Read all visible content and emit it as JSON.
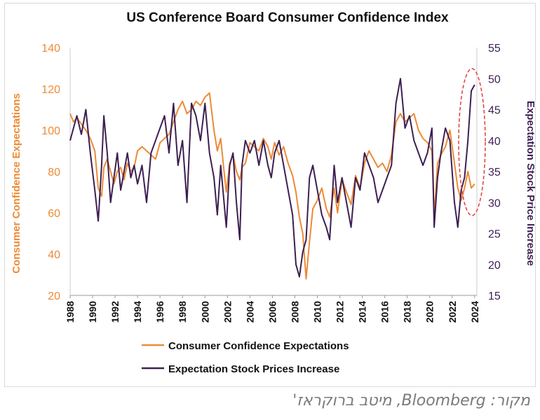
{
  "chart_data": {
    "type": "line",
    "title": "US Conference Board Consumer Confidence Index",
    "xlabel": "",
    "ylabel_left": "Consumer Confidence Expectations",
    "ylabel_right": "Expectation Stock Price Increase",
    "xlim": [
      1988,
      2024.2
    ],
    "ylim_left": [
      20,
      140
    ],
    "ylim_right": [
      15,
      55
    ],
    "left_ticks": [
      "20",
      "40",
      "60",
      "80",
      "100",
      "120",
      "140"
    ],
    "right_ticks": [
      "15",
      "20",
      "25",
      "30",
      "35",
      "40",
      "45",
      "50",
      "55"
    ],
    "x_ticks": [
      "1988",
      "1990",
      "1992",
      "1994",
      "1996",
      "1998",
      "2000",
      "2002",
      "2004",
      "2006",
      "2008",
      "2010",
      "2012",
      "2014",
      "2016",
      "2018",
      "2020",
      "2022",
      "2024"
    ],
    "legend_position": "bottom",
    "annotation": "dashed red ellipse highlighting 2023-2024 surge",
    "series": [
      {
        "name": "Consumer Confidence Expectations",
        "axis": "left",
        "color": "#ed8a35",
        "x": [
          1988.0,
          1988.3,
          1988.6,
          1989.0,
          1989.4,
          1989.8,
          1990.2,
          1990.5,
          1990.8,
          1991.0,
          1991.3,
          1991.6,
          1991.9,
          1992.2,
          1992.5,
          1992.8,
          1993.1,
          1993.4,
          1993.7,
          1994.0,
          1994.4,
          1994.8,
          1995.2,
          1995.6,
          1996.0,
          1996.4,
          1996.8,
          1997.2,
          1997.6,
          1998.0,
          1998.4,
          1998.8,
          1999.2,
          1999.6,
          2000.0,
          2000.4,
          2000.8,
          2001.1,
          2001.4,
          2001.7,
          2001.9,
          2002.2,
          2002.5,
          2002.8,
          2003.1,
          2003.3,
          2003.6,
          2004.0,
          2004.4,
          2004.8,
          2005.2,
          2005.6,
          2005.9,
          2006.2,
          2006.6,
          2007.0,
          2007.4,
          2007.8,
          2008.1,
          2008.4,
          2008.7,
          2009.0,
          2009.3,
          2009.6,
          2010.0,
          2010.4,
          2010.8,
          2011.1,
          2011.5,
          2011.8,
          2012.2,
          2012.6,
          2013.0,
          2013.4,
          2013.8,
          2014.2,
          2014.6,
          2015.0,
          2015.4,
          2015.8,
          2016.2,
          2016.6,
          2017.0,
          2017.4,
          2017.8,
          2018.2,
          2018.6,
          2019.0,
          2019.4,
          2019.8,
          2020.2,
          2020.4,
          2020.7,
          2021.0,
          2021.4,
          2021.8,
          2022.2,
          2022.5,
          2022.8,
          2023.1,
          2023.4,
          2023.7,
          2024.0
        ],
        "y": [
          108,
          104,
          106,
          103,
          100,
          96,
          90,
          72,
          68,
          82,
          86,
          80,
          74,
          80,
          82,
          76,
          84,
          80,
          82,
          90,
          92,
          90,
          88,
          86,
          94,
          96,
          98,
          104,
          110,
          114,
          108,
          110,
          114,
          112,
          116,
          118,
          100,
          90,
          96,
          80,
          70,
          84,
          88,
          80,
          76,
          82,
          84,
          94,
          92,
          90,
          96,
          92,
          86,
          94,
          88,
          92,
          84,
          78,
          70,
          58,
          50,
          28,
          46,
          62,
          66,
          72,
          62,
          58,
          72,
          60,
          76,
          70,
          64,
          78,
          72,
          84,
          90,
          86,
          82,
          84,
          80,
          88,
          104,
          108,
          104,
          106,
          108,
          100,
          96,
          94,
          90,
          58,
          84,
          88,
          92,
          100,
          84,
          72,
          66,
          72,
          80,
          72,
          74
        ]
      },
      {
        "name": "Expectation Stock Price Increase",
        "axis": "right",
        "color": "#3d1f52",
        "x": [
          1988.0,
          1988.3,
          1988.6,
          1989.0,
          1989.4,
          1989.8,
          1990.2,
          1990.5,
          1990.8,
          1991.0,
          1991.3,
          1991.6,
          1991.9,
          1992.2,
          1992.5,
          1992.8,
          1993.1,
          1993.4,
          1993.7,
          1994.0,
          1994.4,
          1994.8,
          1995.2,
          1995.6,
          1996.0,
          1996.4,
          1996.8,
          1997.2,
          1997.6,
          1998.0,
          1998.4,
          1998.8,
          1999.2,
          1999.6,
          2000.0,
          2000.4,
          2000.8,
          2001.1,
          2001.4,
          2001.7,
          2001.9,
          2002.2,
          2002.5,
          2002.8,
          2003.1,
          2003.3,
          2003.6,
          2004.0,
          2004.4,
          2004.8,
          2005.2,
          2005.6,
          2005.9,
          2006.2,
          2006.6,
          2007.0,
          2007.4,
          2007.8,
          2008.1,
          2008.4,
          2008.7,
          2009.0,
          2009.3,
          2009.6,
          2010.0,
          2010.4,
          2010.8,
          2011.1,
          2011.5,
          2011.8,
          2012.2,
          2012.6,
          2013.0,
          2013.4,
          2013.8,
          2014.2,
          2014.6,
          2015.0,
          2015.4,
          2015.8,
          2016.2,
          2016.6,
          2017.0,
          2017.4,
          2017.8,
          2018.2,
          2018.6,
          2019.0,
          2019.4,
          2019.8,
          2020.2,
          2020.4,
          2020.7,
          2021.0,
          2021.4,
          2021.8,
          2022.2,
          2022.5,
          2022.8,
          2023.1,
          2023.4,
          2023.7,
          2024.0
        ],
        "y": [
          40,
          42,
          44,
          41,
          45,
          38,
          32,
          27,
          36,
          44,
          38,
          30,
          34,
          38,
          32,
          35,
          38,
          34,
          36,
          33,
          36,
          30,
          38,
          40,
          42,
          44,
          38,
          46,
          36,
          40,
          30,
          46,
          44,
          40,
          46,
          38,
          34,
          28,
          36,
          30,
          26,
          36,
          38,
          30,
          24,
          36,
          40,
          38,
          40,
          36,
          40,
          36,
          34,
          38,
          40,
          36,
          32,
          28,
          20,
          18,
          22,
          24,
          34,
          36,
          32,
          28,
          26,
          24,
          36,
          30,
          34,
          30,
          26,
          34,
          32,
          38,
          36,
          34,
          30,
          32,
          34,
          36,
          46,
          50,
          42,
          44,
          40,
          38,
          36,
          38,
          42,
          26,
          34,
          38,
          42,
          40,
          30,
          26,
          32,
          34,
          40,
          48,
          49
        ]
      }
    ]
  },
  "legend": {
    "item1_label": "Consumer Confidence Expectations",
    "item2_label": "Expectation Stock Prices Increase"
  },
  "source_text": "מקור: Bloomberg, מיטב ברוקראז'",
  "colors": {
    "expectations": "#ed8a35",
    "stocks": "#3d1f52",
    "left_axis_text": "#ed8a35",
    "right_axis_text": "#3d1f52",
    "annotation": "#e03c3c"
  }
}
